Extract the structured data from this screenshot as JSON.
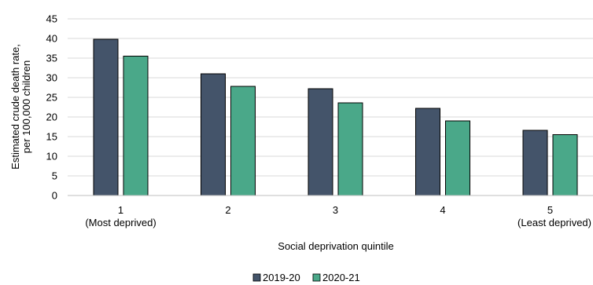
{
  "chart_data": {
    "type": "bar",
    "xlabel": "Social deprivation quintile",
    "ylabel_lines": [
      "Estimated crude death rate,",
      "per 100,000 children"
    ],
    "categories": [
      {
        "line1": "1",
        "line2": "(Most deprived)"
      },
      {
        "line1": "2",
        "line2": ""
      },
      {
        "line1": "3",
        "line2": ""
      },
      {
        "line1": "4",
        "line2": ""
      },
      {
        "line1": "5",
        "line2": "(Least deprived)"
      }
    ],
    "series": [
      {
        "name": "2019-20",
        "color": "#44546a",
        "values": [
          39.8,
          31.0,
          27.2,
          22.2,
          16.6
        ]
      },
      {
        "name": "2020-21",
        "color": "#4aa889",
        "values": [
          35.5,
          27.8,
          23.6,
          19.0,
          15.5
        ]
      }
    ],
    "ylim": [
      0,
      45
    ],
    "yticks": [
      0,
      5,
      10,
      15,
      20,
      25,
      30,
      35,
      40,
      45
    ],
    "grid": true,
    "legend_position": "bottom-center"
  }
}
